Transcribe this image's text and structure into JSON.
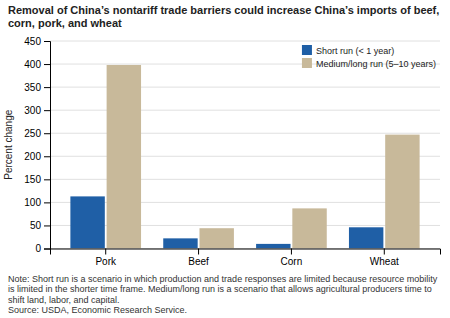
{
  "chart_data": {
    "type": "bar",
    "title": "Removal of China’s nontariff trade barriers could increase China’s imports of beef, corn, pork, and wheat",
    "ylabel": "Percent change",
    "categories": [
      "Pork",
      "Beef",
      "Corn",
      "Wheat"
    ],
    "series": [
      {
        "name": "Short run (< 1 year)",
        "color": "#1f5fa6",
        "values": [
          113,
          22,
          10,
          46
        ]
      },
      {
        "name": "Medium/long run (5–10 years)",
        "color": "#c8b99a",
        "values": [
          398,
          44,
          87,
          247
        ]
      }
    ],
    "ylim": [
      0,
      450
    ],
    "yticks": [
      0,
      50,
      100,
      150,
      200,
      250,
      300,
      350,
      400,
      450
    ],
    "grid": true,
    "legend": "upper right",
    "annotations": [
      "Note: Short run is a scenario in which production and trade responses are limited because resource mobility is limited in the shorter time frame. Medium/long run is a scenario that allows agricultural producers time to shift land, labor, and capital.",
      "Source: USDA, Economic Research Service."
    ]
  }
}
